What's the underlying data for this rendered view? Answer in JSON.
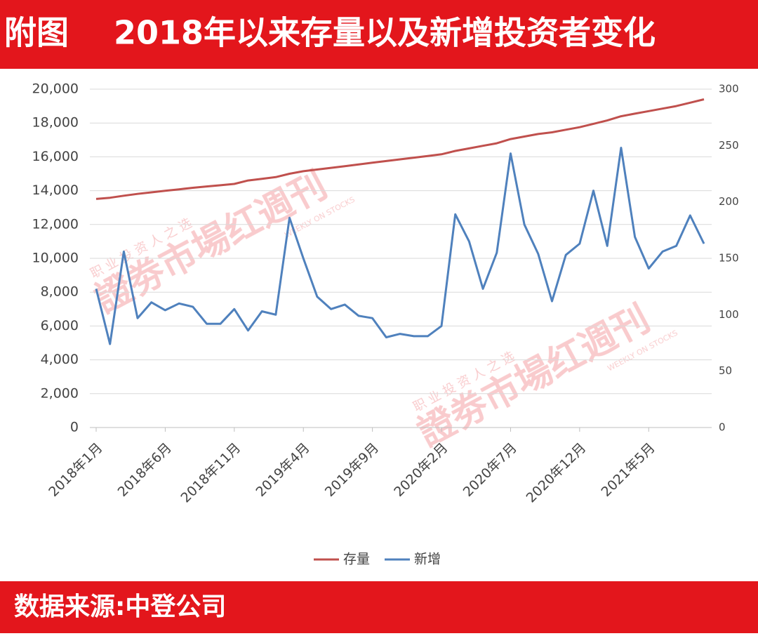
{
  "header": {
    "label": "附图",
    "title": "2018年以来存量以及新增投资者变化"
  },
  "footer": {
    "source": "数据来源:中登公司"
  },
  "watermark": {
    "tagline": "职 业 投 资 人 之 选",
    "brand": "證劵市場红週刊",
    "english": "WEEKLY ON STOCKS"
  },
  "chart_data": {
    "type": "line",
    "categories": [
      "2018年1月",
      null,
      null,
      null,
      null,
      "2018年6月",
      null,
      null,
      null,
      null,
      "2018年11月",
      null,
      null,
      null,
      null,
      "2019年4月",
      null,
      null,
      null,
      null,
      "2019年9月",
      null,
      null,
      null,
      null,
      "2020年2月",
      null,
      null,
      null,
      null,
      "2020年7月",
      null,
      null,
      null,
      null,
      "2020年12月",
      null,
      null,
      null,
      null,
      "2021年5月",
      null,
      null,
      null,
      null
    ],
    "series": [
      {
        "name": "存量",
        "color": "#c0504d",
        "values": [
          13510,
          13580,
          13700,
          13810,
          13900,
          13990,
          14080,
          14170,
          14250,
          14320,
          14400,
          14600,
          14700,
          14800,
          15000,
          15150,
          15250,
          15350,
          15450,
          15550,
          15650,
          15750,
          15850,
          15950,
          16050,
          16150,
          16350,
          16500,
          16650,
          16800,
          17050,
          17200,
          17350,
          17450,
          17600,
          17750,
          17950,
          18150,
          18400,
          18550,
          18700,
          18850,
          19000,
          19200,
          19400
        ]
      },
      {
        "name": "新增",
        "color": "#4f81bd",
        "axis": "y2",
        "values": [
          123,
          74,
          156,
          97,
          111,
          104,
          110,
          107,
          92,
          92,
          105,
          86,
          103,
          100,
          186,
          150,
          116,
          105,
          109,
          99,
          97,
          80,
          83,
          81,
          81,
          90,
          189,
          165,
          123,
          155,
          243,
          180,
          154,
          112,
          153,
          163,
          210,
          161,
          248,
          169,
          141,
          156,
          161,
          188,
          163
        ]
      }
    ],
    "ylim": [
      0,
      20000
    ],
    "yticks": [
      {
        "value": 0,
        "label": "0"
      },
      {
        "value": 2000,
        "label": "2,000"
      },
      {
        "value": 4000,
        "label": "4,000"
      },
      {
        "value": 6000,
        "label": "6,000"
      },
      {
        "value": 8000,
        "label": "8,000"
      },
      {
        "value": 10000,
        "label": "10,000"
      },
      {
        "value": 12000,
        "label": "12,000"
      },
      {
        "value": 14000,
        "label": "14,000"
      },
      {
        "value": 16000,
        "label": "16,000"
      },
      {
        "value": 18000,
        "label": "18,000"
      },
      {
        "value": 20000,
        "label": "20,000"
      }
    ],
    "y2lim": [
      0,
      300
    ],
    "y2ticks": [
      0,
      50,
      100,
      150,
      200,
      250,
      300
    ],
    "grid": true,
    "legend": "bottom"
  }
}
